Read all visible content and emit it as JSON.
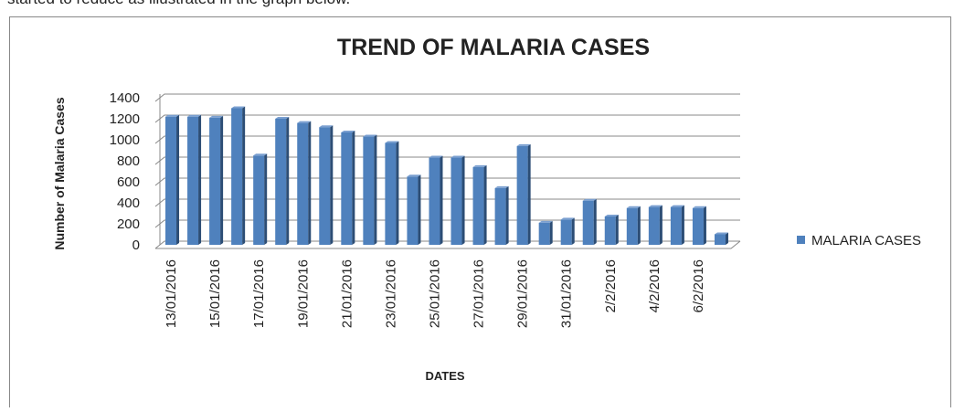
{
  "document": {
    "text": "started to reduce as illustrated in the graph below."
  },
  "chart_data": {
    "type": "bar",
    "title": "TREND OF MALARIA CASES",
    "x_label": "DATES",
    "y_label": "Number of Malaria Cases",
    "categories": [
      "13/01/2016",
      null,
      "15/01/2016",
      null,
      "17/01/2016",
      null,
      "19/01/2016",
      null,
      "21/01/2016",
      null,
      "23/01/2016",
      null,
      "25/01/2016",
      null,
      "27/01/2016",
      null,
      "29/01/2016",
      null,
      "31/01/2016",
      null,
      "2/2/2016",
      null,
      "4/2/2016",
      null,
      "6/2/2016",
      null
    ],
    "series": [
      {
        "name": "MALARIA CASES",
        "color": "#4f81bd",
        "values": [
          1220,
          1220,
          1210,
          1300,
          850,
          1200,
          1160,
          1120,
          1070,
          1030,
          970,
          650,
          830,
          830,
          740,
          540,
          940,
          210,
          240,
          420,
          270,
          350,
          360,
          360,
          350,
          100
        ]
      }
    ],
    "ylim": [
      0,
      1400
    ],
    "yticks": [
      0,
      200,
      400,
      600,
      800,
      1000,
      1200,
      1400
    ],
    "grid": true,
    "legend": "right"
  }
}
